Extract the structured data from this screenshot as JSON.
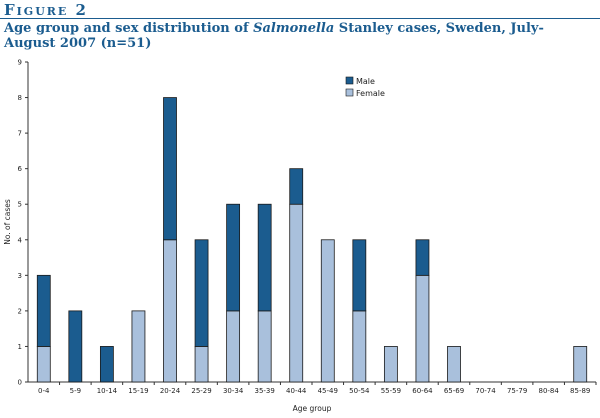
{
  "figure": {
    "label": "Figure 2",
    "title_before": "Age group and sex distribution of ",
    "title_italic": "Salmonella",
    "title_after": " Stanley cases, Sweden, July-August 2007 (n=51)"
  },
  "colors": {
    "male": "#1b5c8f",
    "female": "#a9c0dc",
    "title": "#1b5c8f"
  },
  "chart_data": {
    "type": "bar",
    "stacked": true,
    "title": "Age group and sex distribution of Salmonella Stanley cases, Sweden, July-August 2007 (n=51)",
    "xlabel": "Age group",
    "ylabel": "No. of cases",
    "ylim": [
      0,
      9
    ],
    "yticks": [
      0,
      1,
      2,
      3,
      4,
      5,
      6,
      7,
      8,
      9
    ],
    "grid": false,
    "legend": "top-center",
    "categories": [
      "0-4",
      "5-9",
      "10-14",
      "15-19",
      "20-24",
      "25-29",
      "30-34",
      "35-39",
      "40-44",
      "45-49",
      "50-54",
      "55-59",
      "60-64",
      "65-69",
      "70-74",
      "75-79",
      "80-84",
      "85-89"
    ],
    "series": [
      {
        "name": "Female",
        "values": [
          1,
          0,
          0,
          2,
          4,
          1,
          2,
          2,
          5,
          4,
          2,
          1,
          3,
          1,
          0,
          0,
          0,
          1
        ]
      },
      {
        "name": "Male",
        "values": [
          2,
          2,
          1,
          0,
          4,
          3,
          3,
          3,
          1,
          0,
          2,
          0,
          1,
          0,
          0,
          0,
          0,
          0
        ]
      }
    ],
    "legend_order": [
      "Male",
      "Female"
    ]
  }
}
